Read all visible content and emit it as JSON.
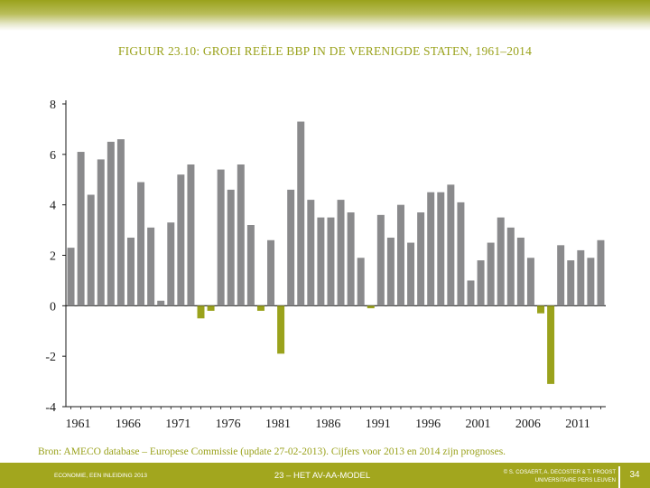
{
  "slide": {
    "title": "FIGUUR 23.10: GROEI REËLE BBP IN DE VERENIGDE STATEN, 1961–2014",
    "source": "Bron: AMECO database – Europese Commissie (update 27-02-2013). Cijfers voor 2013 en 2014 zijn prognoses."
  },
  "footer": {
    "left": "ECONOMIE, EEN INLEIDING 2013",
    "center": "23 – HET AV-AA-MODEL",
    "right_line1": "© S. COSAERT, A. DECOSTER & T. PROOST",
    "right_line2": "UNIVERSITAIRE PERS LEUVEN",
    "page_number": "34"
  },
  "colors": {
    "accent": "#9aa21c",
    "positive_bar": "#8a8a8c",
    "negative_bar": "#9aa21c",
    "axis": "#1a1a1a"
  },
  "chart_data": {
    "type": "bar",
    "title": "FIGUUR 23.10: GROEI REËLE BBP IN DE VERENIGDE STATEN, 1961–2014",
    "xlabel": "",
    "ylabel": "",
    "ylim": [
      -4,
      8
    ],
    "yticks": [
      -4,
      -2,
      0,
      2,
      4,
      6,
      8
    ],
    "ytick_labels": [
      "-4",
      "-2",
      "0",
      "2",
      "4",
      "6",
      "8"
    ],
    "xtick_labels": [
      "1961",
      "1966",
      "1971",
      "1976",
      "1981",
      "1986",
      "1991",
      "1996",
      "2001",
      "2006",
      "2011"
    ],
    "categories": [
      1961,
      1962,
      1963,
      1964,
      1965,
      1966,
      1967,
      1968,
      1969,
      1970,
      1971,
      1972,
      1973,
      1974,
      1975,
      1976,
      1977,
      1978,
      1979,
      1980,
      1981,
      1982,
      1983,
      1984,
      1985,
      1986,
      1987,
      1988,
      1989,
      1990,
      1991,
      1992,
      1993,
      1994,
      1995,
      1996,
      1997,
      1998,
      1999,
      2000,
      2001,
      2002,
      2003,
      2004,
      2005,
      2006,
      2007,
      2008,
      2009,
      2010,
      2011,
      2012,
      2013,
      2014
    ],
    "values": [
      2.3,
      6.1,
      4.4,
      5.8,
      6.5,
      6.6,
      2.7,
      4.9,
      3.1,
      0.2,
      3.3,
      5.2,
      5.6,
      -0.5,
      -0.2,
      5.4,
      4.6,
      5.6,
      3.2,
      -0.2,
      2.6,
      -1.9,
      4.6,
      7.3,
      4.2,
      3.5,
      3.5,
      4.2,
      3.7,
      1.9,
      -0.1,
      3.6,
      2.7,
      4.0,
      2.5,
      3.7,
      4.5,
      4.5,
      4.8,
      4.1,
      1.0,
      1.8,
      2.5,
      3.5,
      3.1,
      2.7,
      1.9,
      -0.3,
      -3.1,
      2.4,
      1.8,
      2.2,
      1.9,
      2.6
    ]
  }
}
